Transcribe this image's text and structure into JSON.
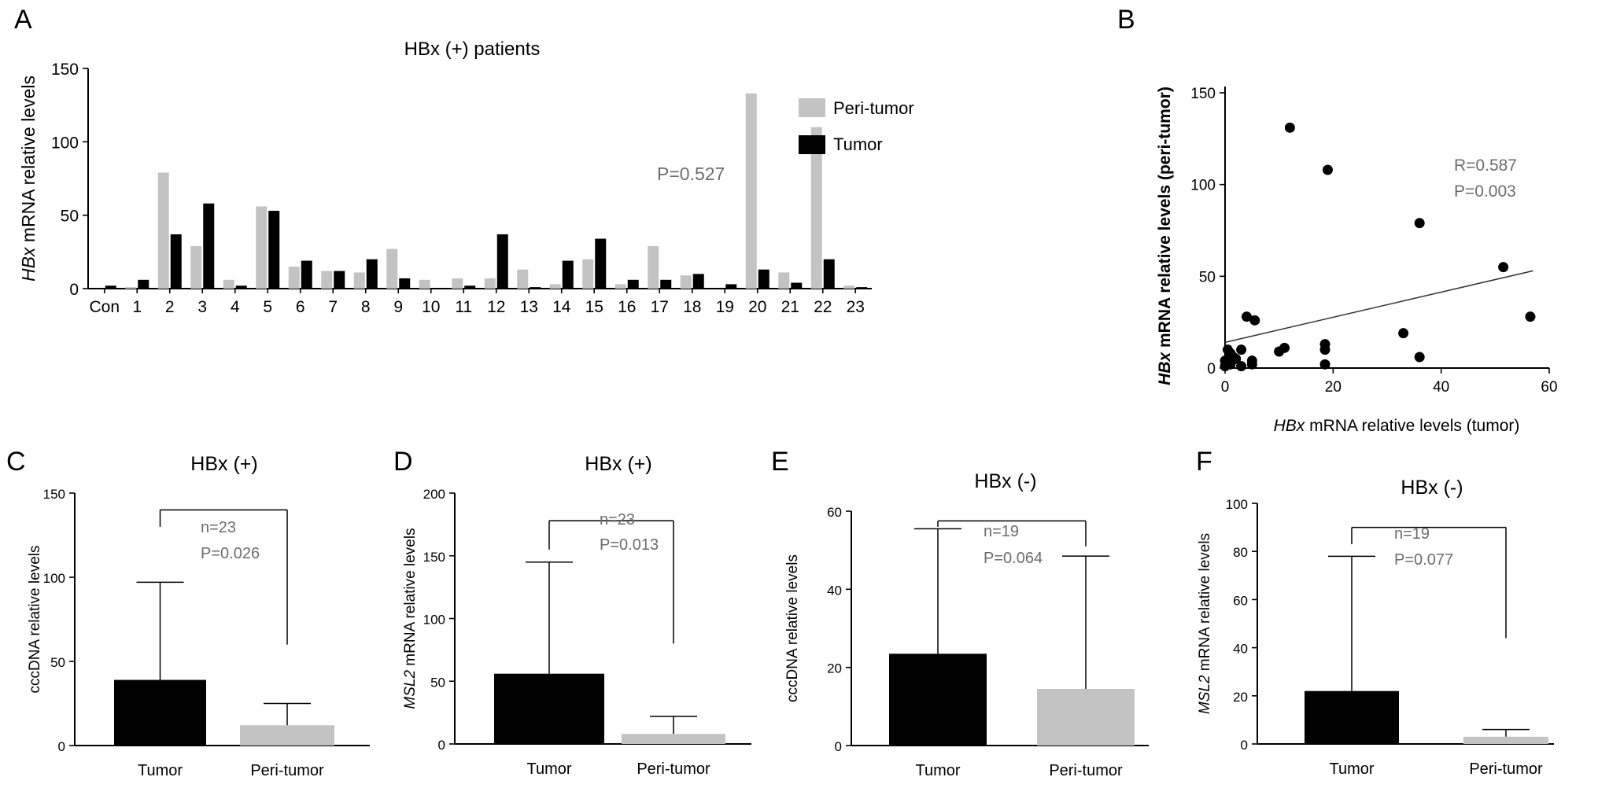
{
  "colors": {
    "peri": "#c3c3c3",
    "tumor": "#000000",
    "axis": "#000000",
    "annotation": "#6d6d6d"
  },
  "chart_data": [
    {
      "panel": "A",
      "type": "bar",
      "title": "HBx (+) patients",
      "ylabel_italic": "HBx",
      "ylabel_rest": " mRNA relative levels",
      "xlabel": "",
      "ylim": [
        0,
        150
      ],
      "yticks": [
        "0",
        "50",
        "100",
        "150"
      ],
      "categories": [
        "Con",
        "1",
        "2",
        "3",
        "4",
        "5",
        "6",
        "7",
        "8",
        "9",
        "10",
        "11",
        "12",
        "13",
        "14",
        "15",
        "16",
        "17",
        "18",
        "19",
        "20",
        "21",
        "22",
        "23"
      ],
      "series": [
        {
          "name": "Peri-tumor",
          "values": [
            0,
            1,
            79,
            29,
            6,
            56,
            15,
            12,
            11,
            27,
            6,
            7,
            7,
            13,
            3,
            20,
            3,
            29,
            9,
            0,
            133,
            11,
            110,
            2
          ]
        },
        {
          "name": "Tumor",
          "values": [
            2,
            6,
            37,
            58,
            2,
            53,
            19,
            12,
            20,
            7,
            0,
            2,
            37,
            1,
            19,
            34,
            6,
            6,
            10,
            3,
            13,
            4,
            20,
            1
          ]
        }
      ],
      "legend_position": "top-right",
      "annotation": "P=0.527"
    },
    {
      "panel": "B",
      "type": "scatter",
      "xlabel_italic": "HBx",
      "xlabel_rest": " mRNA relative levels (tumor)",
      "ylabel_italic": "HBx",
      "ylabel_rest": " mRNA relative levels (peri-tumor)",
      "xlim": [
        0,
        60
      ],
      "ylim": [
        0,
        150
      ],
      "xticks": [
        "0",
        "20",
        "40",
        "60"
      ],
      "yticks": [
        "0",
        "50",
        "100",
        "150"
      ],
      "points": [
        [
          0,
          1
        ],
        [
          0,
          4
        ],
        [
          0.5,
          10
        ],
        [
          1,
          2
        ],
        [
          1,
          8
        ],
        [
          1.5,
          6
        ],
        [
          2,
          5
        ],
        [
          3,
          1
        ],
        [
          3,
          10
        ],
        [
          4,
          28
        ],
        [
          5,
          2
        ],
        [
          5,
          4
        ],
        [
          5.5,
          26
        ],
        [
          10,
          9
        ],
        [
          11,
          11
        ],
        [
          12,
          131
        ],
        [
          18.5,
          2
        ],
        [
          18.5,
          10
        ],
        [
          18.5,
          13
        ],
        [
          19,
          108
        ],
        [
          33,
          19
        ],
        [
          36,
          6
        ],
        [
          36,
          79
        ],
        [
          51.5,
          55
        ],
        [
          56.5,
          28
        ]
      ],
      "regression": {
        "x": [
          0,
          57
        ],
        "y": [
          14,
          53
        ]
      },
      "annotation": [
        "R=0.587",
        "P=0.003"
      ]
    },
    {
      "panel": "C",
      "type": "bar",
      "title": "HBx (+)",
      "ylabel_italic": "",
      "ylabel_rest": "cccDNA relative levels",
      "ylim": [
        0,
        150
      ],
      "yticks": [
        "0",
        "50",
        "100",
        "150"
      ],
      "categories": [
        "Tumor",
        "Peri-tumor"
      ],
      "values": [
        39,
        12
      ],
      "errors_upper": [
        97,
        25
      ],
      "annotation": [
        "n=23",
        "P=0.026"
      ],
      "bracket_ends": [
        130,
        60
      ]
    },
    {
      "panel": "D",
      "type": "bar",
      "title": "HBx (+)",
      "ylabel_italic": "MSL2",
      "ylabel_rest": " mRNA relative levels",
      "ylim": [
        0,
        200
      ],
      "yticks": [
        "0",
        "50",
        "100",
        "150",
        "200"
      ],
      "categories": [
        "Tumor",
        "Peri-tumor"
      ],
      "values": [
        56,
        8
      ],
      "errors_upper": [
        145,
        22
      ],
      "annotation": [
        "n=23",
        "P=0.013"
      ],
      "bracket_ends": [
        155,
        80
      ]
    },
    {
      "panel": "E",
      "type": "bar",
      "title": "HBx (-)",
      "ylabel_italic": "",
      "ylabel_rest": "cccDNA relative levels",
      "ylim": [
        0,
        60
      ],
      "yticks": [
        "0",
        "20",
        "40",
        "60"
      ],
      "categories": [
        "Tumor",
        "Peri-tumor"
      ],
      "values": [
        23.5,
        14.5
      ],
      "errors_upper": [
        55.5,
        48.5
      ],
      "annotation": [
        "n=19",
        "P=0.064"
      ],
      "bracket_ends": [
        56,
        51
      ]
    },
    {
      "panel": "F",
      "type": "bar",
      "title": "HBx (-)",
      "ylabel_italic": "MSL2",
      "ylabel_rest": " mRNA relative levels",
      "ylim": [
        0,
        100
      ],
      "yticks": [
        "0",
        "20",
        "40",
        "60",
        "80",
        "100"
      ],
      "categories": [
        "Tumor",
        "Peri-tumor"
      ],
      "values": [
        22,
        3
      ],
      "errors_upper": [
        78,
        6
      ],
      "annotation": [
        "n=19",
        "P=0.077"
      ],
      "bracket_ends": [
        83,
        44
      ]
    }
  ]
}
